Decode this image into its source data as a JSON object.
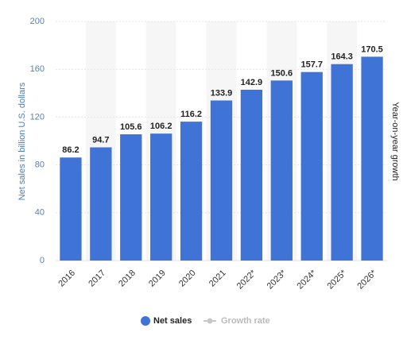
{
  "chart_data": {
    "type": "bar",
    "y_label": "Net sales in billion U.S. dollars",
    "y2_label": "Year-on-year growth",
    "categories": [
      "2016",
      "2017",
      "2018",
      "2019",
      "2020",
      "2021",
      "2022*",
      "2023*",
      "2024*",
      "2025*",
      "2026*"
    ],
    "series": [
      {
        "name": "Net sales",
        "color": "#3f73d6",
        "values": [
          86.2,
          94.7,
          105.6,
          106.2,
          116.2,
          133.9,
          142.9,
          150.6,
          157.7,
          164.3,
          170.5
        ]
      },
      {
        "name": "Growth rate",
        "color": "#c8c8c8",
        "values": [
          null,
          null,
          null,
          null,
          null,
          null,
          null,
          null,
          null,
          null,
          null
        ]
      }
    ],
    "ylim": [
      0,
      200
    ],
    "yticks": [
      0,
      40,
      80,
      120,
      160,
      200
    ],
    "grid": true
  }
}
